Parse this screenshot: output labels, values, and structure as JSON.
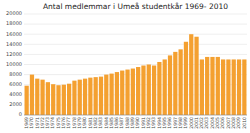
{
  "chart_data": {
    "type": "bar",
    "title": "Antal medlemmar i Umeå studentkår 1969- 2010",
    "categories": [
      "1969",
      "1970",
      "1971",
      "1972",
      "1973",
      "1974",
      "1975",
      "1976",
      "1977",
      "1978",
      "1979",
      "1980",
      "1981",
      "1982",
      "1983",
      "1984",
      "1985",
      "1986",
      "1987",
      "1988",
      "1989",
      "1990",
      "1991",
      "1992",
      "1993",
      "1994",
      "1995",
      "1996",
      "1997",
      "1998",
      "1999",
      "2000",
      "2001",
      "2002",
      "2003",
      "2004",
      "2005",
      "2006",
      "2007",
      "2008",
      "2009",
      "2010"
    ],
    "values": [
      5800,
      8000,
      7200,
      7000,
      6500,
      6100,
      5900,
      6000,
      6200,
      6800,
      7000,
      7200,
      7400,
      7500,
      7600,
      8000,
      8200,
      8500,
      8800,
      9000,
      9200,
      9500,
      9800,
      10000,
      9800,
      10500,
      11000,
      11800,
      12500,
      13000,
      14500,
      16000,
      15500,
      11000,
      11500,
      11500,
      11500,
      11000,
      11000,
      11000,
      11000,
      11000
    ],
    "color": "#F4A030",
    "ylim": [
      0,
      20000
    ],
    "yticks": [
      0,
      2000,
      4000,
      6000,
      8000,
      10000,
      12000,
      14000,
      16000,
      18000,
      20000
    ],
    "grid": true
  }
}
